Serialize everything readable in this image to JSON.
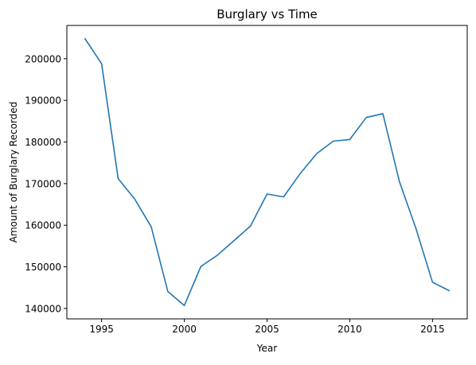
{
  "chart_data": {
    "type": "line",
    "title": "Burglary vs Time",
    "xlabel": "Year",
    "ylabel": "Amount of Burglary Recorded",
    "xlim": [
      1992.9,
      2017.1
    ],
    "ylim": [
      137500,
      208000
    ],
    "xticks": [
      1995,
      2000,
      2005,
      2010,
      2015
    ],
    "yticks": [
      140000,
      150000,
      160000,
      170000,
      180000,
      190000,
      200000
    ],
    "grid": false,
    "legend": "none",
    "series": [
      {
        "color": "#1f77b4",
        "x": [
          1994,
          1995,
          1996,
          1997,
          1998,
          1999,
          2000,
          2001,
          2002,
          2003,
          2004,
          2005,
          2006,
          2007,
          2008,
          2009,
          2010,
          2011,
          2012,
          2013,
          2014,
          2015,
          2016
        ],
        "y": [
          204800,
          198800,
          171200,
          166300,
          159600,
          144100,
          140700,
          150100,
          152800,
          156300,
          159800,
          167500,
          166800,
          172400,
          177200,
          180200,
          180600,
          185900,
          186800,
          170500,
          159200,
          146300,
          144300
        ]
      }
    ]
  }
}
